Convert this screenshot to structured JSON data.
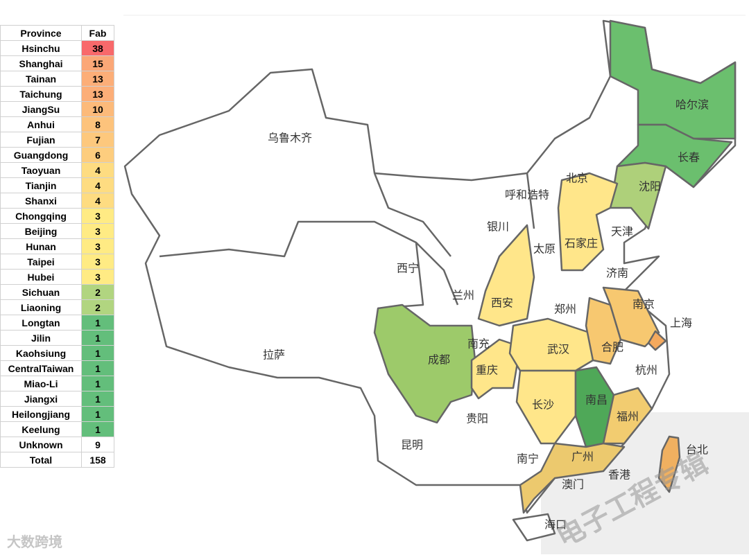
{
  "table": {
    "header": [
      "Province",
      "Fab"
    ],
    "rows": [
      [
        "Hsinchu",
        38
      ],
      [
        "Shanghai",
        15
      ],
      [
        "Tainan",
        13
      ],
      [
        "Taichung",
        13
      ],
      [
        "JiangSu",
        10
      ],
      [
        "Anhui",
        8
      ],
      [
        "Fujian",
        7
      ],
      [
        "Guangdong",
        6
      ],
      [
        "Taoyuan",
        4
      ],
      [
        "Tianjin",
        4
      ],
      [
        "Shanxi",
        4
      ],
      [
        "Chongqing",
        3
      ],
      [
        "Beijing",
        3
      ],
      [
        "Hunan",
        3
      ],
      [
        "Taipei",
        3
      ],
      [
        "Hubei",
        3
      ],
      [
        "Sichuan",
        2
      ],
      [
        "Liaoning",
        2
      ],
      [
        "Longtan",
        1
      ],
      [
        "Jilin",
        1
      ],
      [
        "Kaohsiung",
        1
      ],
      [
        "CentralTaiwan",
        1
      ],
      [
        "Miao-Li",
        1
      ],
      [
        "Jiangxi",
        1
      ],
      [
        "Heilongjiang",
        1
      ],
      [
        "Keelung",
        1
      ]
    ],
    "unknown": [
      "Unknown",
      9
    ],
    "total": [
      "Total",
      158
    ]
  },
  "map": {
    "cities": [
      "乌鲁木齐",
      "哈尔滨",
      "长春",
      "沈阳",
      "北京",
      "呼和浩特",
      "天津",
      "石家庄",
      "银川",
      "太原",
      "西宁",
      "济南",
      "兰州",
      "西安",
      "郑州",
      "南京",
      "上海",
      "拉萨",
      "南充",
      "成都",
      "合肥",
      "武汉",
      "重庆",
      "杭州",
      "长沙",
      "南昌",
      "贵阳",
      "福州",
      "昆明",
      "南宁",
      "广州",
      "台北",
      "香港",
      "澳门",
      "海口"
    ]
  },
  "watermarks": [
    "大数跨境",
    "电子工程专辑"
  ]
}
